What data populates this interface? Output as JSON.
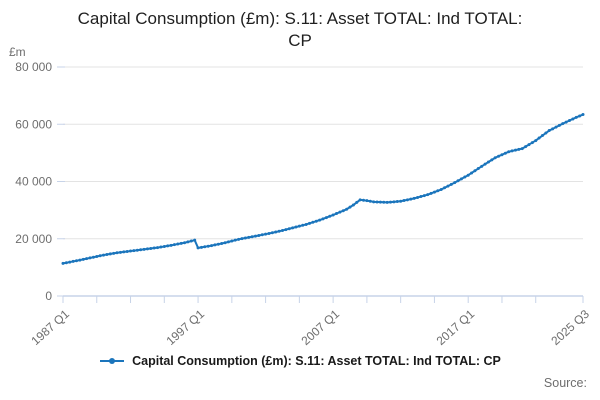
{
  "header": {
    "title": "Capital Consumption (£m): S.11: Asset TOTAL: Ind TOTAL: CP",
    "title_line1": "Capital Consumption (£m): S.11: Asset TOTAL: Ind TOTAL:",
    "title_line2": "CP"
  },
  "legend": {
    "label": "Capital Consumption (£m): S.11: Asset TOTAL: Ind TOTAL: CP"
  },
  "footer": {
    "source": "Source:"
  },
  "colors": {
    "line": "#1b75bc",
    "grid": "#e3e3e3",
    "axis": "#c7d3e8",
    "muted_text": "#6e6e6e",
    "title_text": "#1f1f1f"
  },
  "chart_data": {
    "type": "line",
    "title": "Capital Consumption (£m): S.11: Asset TOTAL: Ind TOTAL: CP",
    "unit_label": "£m",
    "frequency": "quarterly",
    "x_period_start": "1987 Q1",
    "x_period_end": "2025 Q3",
    "ylim": [
      0,
      80000
    ],
    "grid": true,
    "legend_position": "bottom",
    "y_ticks": [
      0,
      20000,
      40000,
      60000,
      80000
    ],
    "y_tick_labels": [
      "0",
      "20 000",
      "40 000",
      "60 000",
      "80 000"
    ],
    "x_tick_labels": [
      {
        "index": 0,
        "label": "1987 Q1"
      },
      {
        "index": 40,
        "label": "1997 Q1"
      },
      {
        "index": 80,
        "label": "2007 Q1"
      },
      {
        "index": 120,
        "label": "2017 Q1"
      },
      {
        "index": 154,
        "label": "2025 Q3"
      }
    ],
    "minor_tick_every": 10,
    "series": [
      {
        "name": "Capital Consumption (£m): S.11: Asset TOTAL: Ind TOTAL: CP",
        "color": "#1b75bc",
        "values": [
          11400,
          11620,
          11850,
          12080,
          12300,
          12550,
          12800,
          13050,
          13300,
          13550,
          13800,
          14050,
          14300,
          14500,
          14700,
          14900,
          15100,
          15250,
          15400,
          15550,
          15700,
          15850,
          16000,
          16150,
          16300,
          16450,
          16600,
          16750,
          16900,
          17100,
          17300,
          17500,
          17700,
          17930,
          18150,
          18380,
          18600,
          18900,
          19200,
          19500,
          16800,
          17000,
          17200,
          17400,
          17600,
          17850,
          18100,
          18350,
          18600,
          18900,
          19200,
          19500,
          19800,
          20030,
          20250,
          20480,
          20700,
          20930,
          21150,
          21380,
          21600,
          21850,
          22100,
          22350,
          22600,
          22900,
          23200,
          23500,
          23800,
          24100,
          24400,
          24700,
          25000,
          25380,
          25750,
          26130,
          26500,
          26950,
          27400,
          27850,
          28300,
          28800,
          29300,
          29800,
          30300,
          31050,
          31800,
          32700,
          33600,
          33450,
          33300,
          33100,
          32900,
          32850,
          32800,
          32750,
          32700,
          32800,
          32900,
          33000,
          33100,
          33350,
          33600,
          33850,
          34100,
          34430,
          34750,
          35080,
          35400,
          35850,
          36300,
          36750,
          37200,
          37800,
          38400,
          39000,
          39600,
          40250,
          40900,
          41550,
          42200,
          42980,
          43750,
          44530,
          45300,
          46050,
          46800,
          47550,
          48300,
          48830,
          49350,
          49880,
          50400,
          50680,
          50950,
          51230,
          51500,
          52200,
          52900,
          53600,
          54300,
          55180,
          56050,
          56930,
          57800,
          58400,
          59000,
          59600,
          60200,
          60750,
          61300,
          61850,
          62400,
          62900,
          63400
        ]
      }
    ]
  }
}
